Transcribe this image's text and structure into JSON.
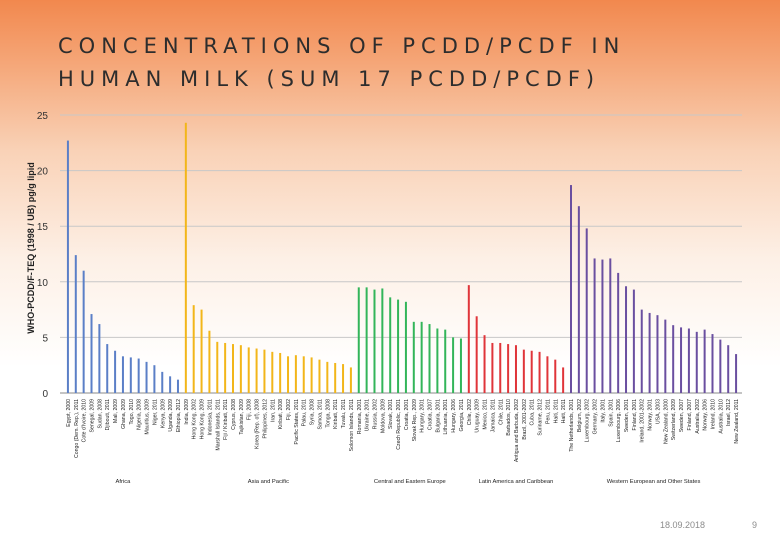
{
  "slide": {
    "title_line1": "CONCENTRATIONS OF PCDD/PCDF IN",
    "title_line2": "HUMAN MILK (SUM 17 PCDD/PCDF)",
    "date": "18.09.2018",
    "page_number": "9"
  },
  "chart_data": {
    "type": "bar",
    "title": "CONCENTRATIONS OF PCDD/PCDF IN HUMAN MILK (SUM 17 PCDD/PCDF)",
    "ylabel": "WHO-PCDD/F-TEQ (1998 / UB) pg/g lipid",
    "xlabel": "",
    "ylim": [
      0,
      25
    ],
    "yticks": [
      0,
      5,
      10,
      15,
      20,
      25
    ],
    "grid": true,
    "groups": [
      {
        "name": "Africa",
        "color": "#5b7fc7",
        "categories": [
          "Egypt, 2000",
          "Congo (Dem. Rep.), 2011",
          "Cote d'Ivoire, 2010",
          "Senegal, 2009",
          "Sudan, 2008",
          "Djibouti, 2011",
          "Mali, 2009",
          "Ghana, 2009",
          "Togo, 2010",
          "Nigeria, 2008",
          "Mauritius, 2009",
          "Niger, 2011",
          "Kenya, 2009",
          "Uganda, 2009",
          "Ethiopia, 2012"
        ],
        "values": [
          22.7,
          12.4,
          11.0,
          7.1,
          6.2,
          4.4,
          3.8,
          3.3,
          3.2,
          3.1,
          2.8,
          2.5,
          1.9,
          1.5,
          1.2
        ]
      },
      {
        "name": "Asia and Pacific",
        "color": "#f2b61a",
        "categories": [
          "India, 2009",
          "Hong Kong, 2002",
          "Hong Kong, 2009",
          "Indonesia, 2011",
          "Marshall Islands, 2011",
          "Fiji / Kiribati, 2011",
          "Cyprus, 2008",
          "Tajikistan, 2009",
          "Fiji, 2008",
          "Korea (Rep. of), 2008",
          "Philippines, 2012",
          "Iran, 2011",
          "Kiribati, 2008",
          "Fiji, 2002",
          "Pacific States, 2011",
          "Palau, 2011",
          "Syria, 2008",
          "Samoa, 2011",
          "Tonga, 2008",
          "Kiribati, 2011",
          "Tuvalu, 2011",
          "Solomon Islands, 2011"
        ],
        "values": [
          24.3,
          7.9,
          7.5,
          5.6,
          4.6,
          4.5,
          4.4,
          4.3,
          4.1,
          4.0,
          3.9,
          3.7,
          3.6,
          3.3,
          3.4,
          3.3,
          3.2,
          3.0,
          2.8,
          2.7,
          2.6,
          2.3
        ]
      },
      {
        "name": "Central and Eastern Europe",
        "color": "#33b55a",
        "categories": [
          "Romania, 2001",
          "Ukraine, 2001",
          "Russia, 2002",
          "Moldova, 2009",
          "Slovak, 2001",
          "Czech Republic, 2001",
          "Croatia, 2001",
          "Slovak Rep., 2009",
          "Hungary, 2001",
          "Croatia, 2007",
          "Bulgaria, 2001",
          "Lithuania, 2001",
          "Hungary, 2006",
          "Georgia, 2011"
        ],
        "values": [
          9.5,
          9.5,
          9.3,
          9.4,
          8.6,
          8.4,
          8.2,
          6.4,
          6.4,
          6.2,
          5.8,
          5.7,
          5.0,
          4.9
        ]
      },
      {
        "name": "Latin America and Caribbean",
        "color": "#e0353a",
        "categories": [
          "Chile, 2002",
          "Uruguay, 2009",
          "Mexico, 2011",
          "Jamaica, 2011",
          "Chile, 2011",
          "Barbados, 2010",
          "Antigua and Barbuda, 2002",
          "Brazil, 2001-2002",
          "Cuba, 2011",
          "Suriname, 2012",
          "Peru, 2011",
          "Haiti, 2011",
          "Haiti, 2011"
        ],
        "values": [
          9.7,
          6.9,
          5.2,
          4.5,
          4.5,
          4.4,
          4.3,
          3.9,
          3.8,
          3.7,
          3.3,
          3.0,
          2.3
        ]
      },
      {
        "name": "Western European and Other States",
        "color": "#6a4fa0",
        "categories": [
          "The Netherlands, 2001",
          "Belgium, 2002",
          "Luxembourg, 2002",
          "Germany, 2002",
          "Italy, 2001",
          "Spain, 2001",
          "Luxembourg, 2006",
          "Sweden, 2001",
          "Finland, 2001",
          "Ireland, 2001-2002",
          "Norway, 2001",
          "USA, 2003",
          "New Zealand, 2000",
          "Switzerland, 2009",
          "Sweden, 2007",
          "Finland, 2007",
          "Australia, 2002",
          "Norway, 2006",
          "Ireland, 2010",
          "Australia, 2010",
          "Israel, 2012",
          "New Zealand, 2011"
        ],
        "values": [
          18.7,
          16.8,
          14.8,
          12.1,
          12.0,
          12.1,
          10.8,
          9.6,
          9.3,
          7.5,
          7.2,
          7.0,
          6.6,
          6.1,
          5.9,
          5.8,
          5.5,
          5.7,
          5.3,
          4.8,
          4.3,
          3.5
        ]
      }
    ]
  }
}
